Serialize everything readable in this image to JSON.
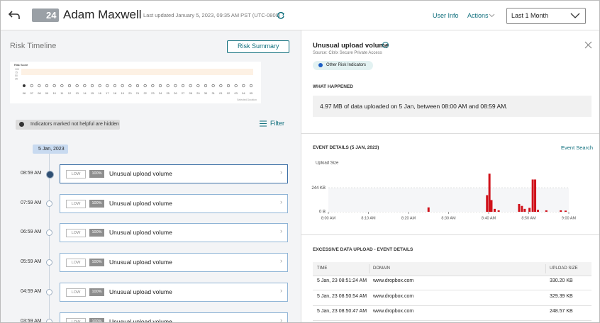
{
  "header": {
    "badge": "24",
    "name": "Adam Maxwell",
    "last_updated": "Last updated January 5, 2023, 09:35 AM PST (UTC-0800)",
    "user_info": "User Info",
    "actions": "Actions",
    "time_range": "Last 1 Month"
  },
  "left": {
    "title": "Risk Timeline",
    "summary_button": "Risk Summary",
    "risk_chart": {
      "y_title": "Risk Score",
      "y_labels": [
        "100",
        "75",
        "50",
        "25"
      ],
      "x_labels": [
        "06",
        "07",
        "08",
        "09",
        "10",
        "11",
        "12",
        "13",
        "14",
        "15",
        "16",
        "17",
        "18",
        "19",
        "20",
        "21",
        "22",
        "23",
        "24",
        "25",
        "26",
        "27",
        "28",
        "29",
        "30",
        "31",
        "01",
        "02",
        "03",
        "04",
        "05"
      ],
      "footer": "Selected Duration"
    },
    "notice": "Indicators marked not helpful are hidden",
    "filter": "Filter",
    "date": "5 Jan, 2023",
    "events": [
      {
        "time": "08:59 AM",
        "level": "LOW",
        "confidence": "100%",
        "title": "Unusual upload volume"
      },
      {
        "time": "07:59 AM",
        "level": "LOW",
        "confidence": "100%",
        "title": "Unusual upload volume"
      },
      {
        "time": "06:59 AM",
        "level": "LOW",
        "confidence": "100%",
        "title": "Unusual upload volume"
      },
      {
        "time": "05:59 AM",
        "level": "LOW",
        "confidence": "100%",
        "title": "Unusual upload volume"
      },
      {
        "time": "04:59 AM",
        "level": "LOW",
        "confidence": "100%",
        "title": "Unusual upload volume"
      },
      {
        "time": "03:59 AM",
        "level": "LOW",
        "confidence": "100%",
        "title": "Unusual upload volume"
      }
    ]
  },
  "right": {
    "title": "Unusual upload volume",
    "source": "Source: Citrix Secure Private Access",
    "tag": "Other Risk Indicators",
    "what_happened": "WHAT HAPPENED",
    "summary": "4.97 MB of data uploaded on 5 Jan, between 08:00 AM and 08:59 AM.",
    "event_details": "EVENT DETAILS (5 JAN, 2023)",
    "event_search": "Event Search",
    "table_title": "EXCESSIVE DATA UPLOAD - EVENT DETAILS",
    "table": {
      "headers": [
        "TIME",
        "DOMAIN",
        "UPLOAD SIZE"
      ],
      "rows": [
        [
          "5 Jan, 23 08:51:24 AM",
          "www.dropbox.com",
          "330.20 KB"
        ],
        [
          "5 Jan, 23 08:50:54 AM",
          "www.dropbox.com",
          "329.39 KB"
        ],
        [
          "5 Jan, 23 08:50:47 AM",
          "www.dropbox.com",
          "248.57 KB"
        ]
      ]
    }
  },
  "chart_data": {
    "type": "bar",
    "y_label": "Upload Size",
    "color": "#d0121b",
    "x": [
      25,
      39.6,
      40.2,
      40.7,
      41.5,
      42.5,
      47.6,
      48.3,
      49,
      50.2,
      51,
      51.6,
      52.3,
      54.4,
      58,
      59.2
    ],
    "values": [
      45,
      170,
      390,
      120,
      30,
      15,
      80,
      60,
      30,
      40,
      330,
      330,
      20,
      15,
      15,
      12
    ],
    "xlim": [
      0,
      60
    ],
    "xticks": [
      {
        "value": 0,
        "label": "8:00 AM"
      },
      {
        "value": 10,
        "label": "8:10 AM"
      },
      {
        "value": 20,
        "label": "8:20 AM"
      },
      {
        "value": 30,
        "label": "8:30 AM"
      },
      {
        "value": 40,
        "label": "8:40 AM"
      },
      {
        "value": 50,
        "label": "8:50 AM"
      },
      {
        "value": 60,
        "label": "9:00 AM"
      }
    ],
    "ylim": [
      0,
      420
    ],
    "yticks": [
      {
        "value": 0,
        "label": "0 B"
      },
      {
        "value": 244,
        "label": "244 KB"
      }
    ]
  }
}
